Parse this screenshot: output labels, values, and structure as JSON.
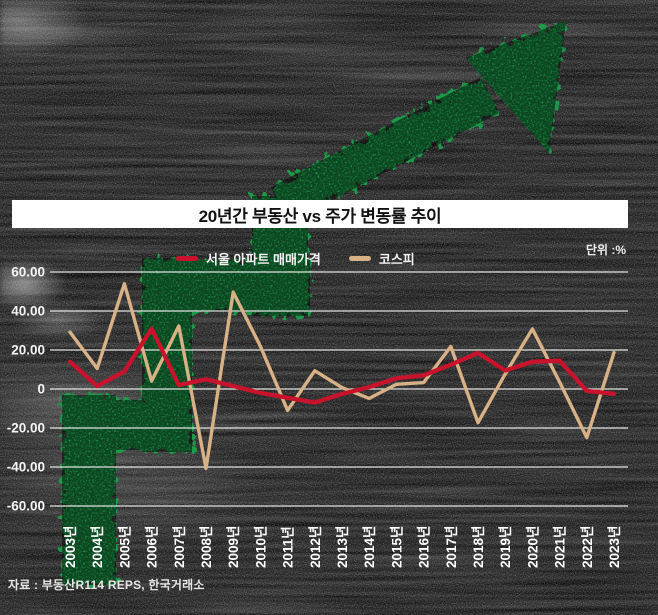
{
  "title": "20년간 부동산 vs 주가 변동률 추이",
  "unit_label": "단위 :%",
  "source": "자료 : 부동산R114 REPS, 한국거래소",
  "legend": [
    {
      "label": "서울 아파트 매매가격",
      "color": "#c9132d"
    },
    {
      "label": "코스피",
      "color": "#d8b286"
    }
  ],
  "colors": {
    "background": "#0d0d0d",
    "arrow_green": "#1c9e4b",
    "gridline": "#f1f1ee",
    "axis_text": "#f5f5f5",
    "seoul_red": "#c9132d",
    "kospi_tan": "#d8b286"
  },
  "chart_data": {
    "type": "line",
    "title": "20년간 부동산 vs 주가 변동률 추이",
    "unit": "단위 :%",
    "categories": [
      "2003년",
      "2004년",
      "2005년",
      "2006년",
      "2007년",
      "2008년",
      "2009년",
      "2010년",
      "2011년",
      "2012년",
      "2013년",
      "2014년",
      "2015년",
      "2016년",
      "2017년",
      "2018년",
      "2019년",
      "2020년",
      "2021년",
      "2022년",
      "2023년"
    ],
    "series": [
      {
        "name": "서울 아파트 매매가격",
        "color": "#c9132d",
        "values": [
          14,
          1.5,
          9,
          31,
          2,
          5,
          1.5,
          -2,
          -4.5,
          -7,
          -2.5,
          1,
          5.5,
          7,
          12.5,
          18.5,
          9.5,
          14,
          14.5,
          -1,
          -2.5
        ]
      },
      {
        "name": "코스피",
        "color": "#d8b286",
        "values": [
          29.2,
          10.5,
          54,
          4,
          32.3,
          -40.7,
          49.7,
          21.9,
          -11,
          9.4,
          0.7,
          -4.8,
          2.4,
          3.3,
          21.8,
          -17.3,
          7.7,
          30.8,
          3.6,
          -24.9,
          18.7
        ]
      }
    ],
    "ytick_labels": [
      "60.00",
      "40.00",
      "20.00",
      "0",
      "-20.00",
      "-40.00",
      "-60.00"
    ],
    "ytick_values": [
      60,
      40,
      20,
      0,
      -20,
      -40,
      -60
    ],
    "ylim": [
      -60,
      60
    ],
    "grid": true,
    "legend_position": "top"
  }
}
